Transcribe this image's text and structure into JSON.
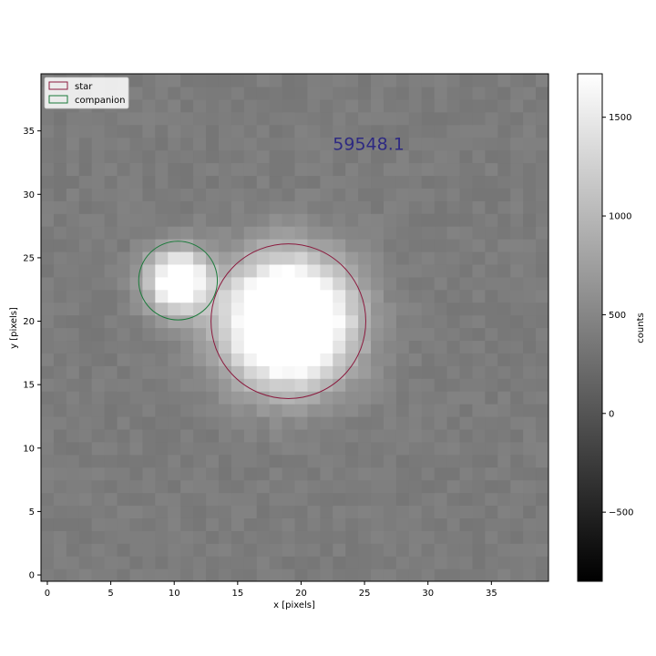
{
  "chart_data": {
    "type": "heatmap",
    "x_range": [
      -0.5,
      39.5
    ],
    "y_range": [
      -0.5,
      39.5
    ],
    "x_ticks": [
      0,
      5,
      10,
      15,
      20,
      25,
      30,
      35
    ],
    "y_ticks": [
      0,
      5,
      10,
      15,
      20,
      25,
      30,
      35
    ],
    "xlabel": "x [pixels]",
    "ylabel": "y [pixels]",
    "annotation": {
      "text": "59548.1",
      "x": 22.5,
      "y": 33.5,
      "color": "#2e2a82"
    },
    "background_level": 400,
    "sources": [
      {
        "name": "star",
        "x": 19,
        "y": 20,
        "radius": 6.1,
        "peak": 2600,
        "color": "#8b1a3e"
      },
      {
        "name": "companion",
        "x": 10.3,
        "y": 23.2,
        "radius": 3.1,
        "peak": 1800,
        "color": "#1a7a3a"
      }
    ],
    "colorbar": {
      "label": "counts",
      "min": -850,
      "max": 1720,
      "ticks": [
        -500,
        0,
        500,
        1000,
        1500
      ],
      "colormap": "gray"
    },
    "legend": {
      "position": "top-left",
      "entries": [
        {
          "label": "star",
          "color": "#8b1a3e"
        },
        {
          "label": "companion",
          "color": "#1a7a3a"
        }
      ]
    }
  }
}
